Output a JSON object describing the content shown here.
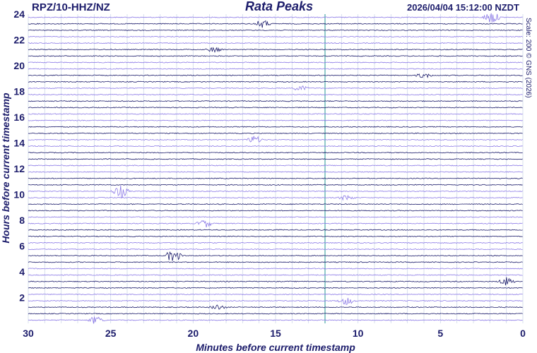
{
  "header": {
    "station": "RPZ/10-HHZ/NZ",
    "title": "Rata Peaks",
    "timestamp": "2026/04/04 15:12:00 NZDT"
  },
  "side_note": "Scale: 200 © GNS (2026)",
  "colors": {
    "text": "#1c1c6b",
    "trace_dark": "#1c1c6b",
    "trace_light": "#8a78e6",
    "grid": "#cfd8ea",
    "center_line": "#4aa8a8"
  },
  "chart_data": {
    "type": "line",
    "title": "Rata Peaks",
    "xlabel": "Minutes before current timestamp",
    "ylabel": "Hours before current timestamp",
    "xlim": [
      30,
      0
    ],
    "ylim": [
      0,
      24
    ],
    "x_ticks": [
      "30",
      "25",
      "20",
      "15",
      "10",
      "5",
      "0"
    ],
    "y_ticks": [
      "2",
      "4",
      "6",
      "8",
      "10",
      "12",
      "14",
      "16",
      "18",
      "20",
      "22",
      "24"
    ],
    "rows_per_hour": 2,
    "trace_count": 48,
    "grid": true,
    "events": [
      {
        "hours_before": 23.9,
        "minute": 1.9,
        "amplitude": "large"
      },
      {
        "hours_before": 23.4,
        "minute": 15.8,
        "amplitude": "medium"
      },
      {
        "hours_before": 21.5,
        "minute": 18.7,
        "amplitude": "small"
      },
      {
        "hours_before": 19.4,
        "minute": 6.0,
        "amplitude": "small"
      },
      {
        "hours_before": 18.1,
        "minute": 13.5,
        "amplitude": "small"
      },
      {
        "hours_before": 14.2,
        "minute": 16.3,
        "amplitude": "medium"
      },
      {
        "hours_before": 10.2,
        "minute": 24.4,
        "amplitude": "large"
      },
      {
        "hours_before": 9.9,
        "minute": 10.7,
        "amplitude": "small"
      },
      {
        "hours_before": 8.0,
        "minute": 19.3,
        "amplitude": "medium"
      },
      {
        "hours_before": 5.2,
        "minute": 21.2,
        "amplitude": "large"
      },
      {
        "hours_before": 3.1,
        "minute": 1.0,
        "amplitude": "medium"
      },
      {
        "hours_before": 1.6,
        "minute": 10.7,
        "amplitude": "medium"
      },
      {
        "hours_before": 1.2,
        "minute": 18.5,
        "amplitude": "small"
      },
      {
        "hours_before": 0.4,
        "minute": 25.9,
        "amplitude": "medium"
      }
    ]
  }
}
